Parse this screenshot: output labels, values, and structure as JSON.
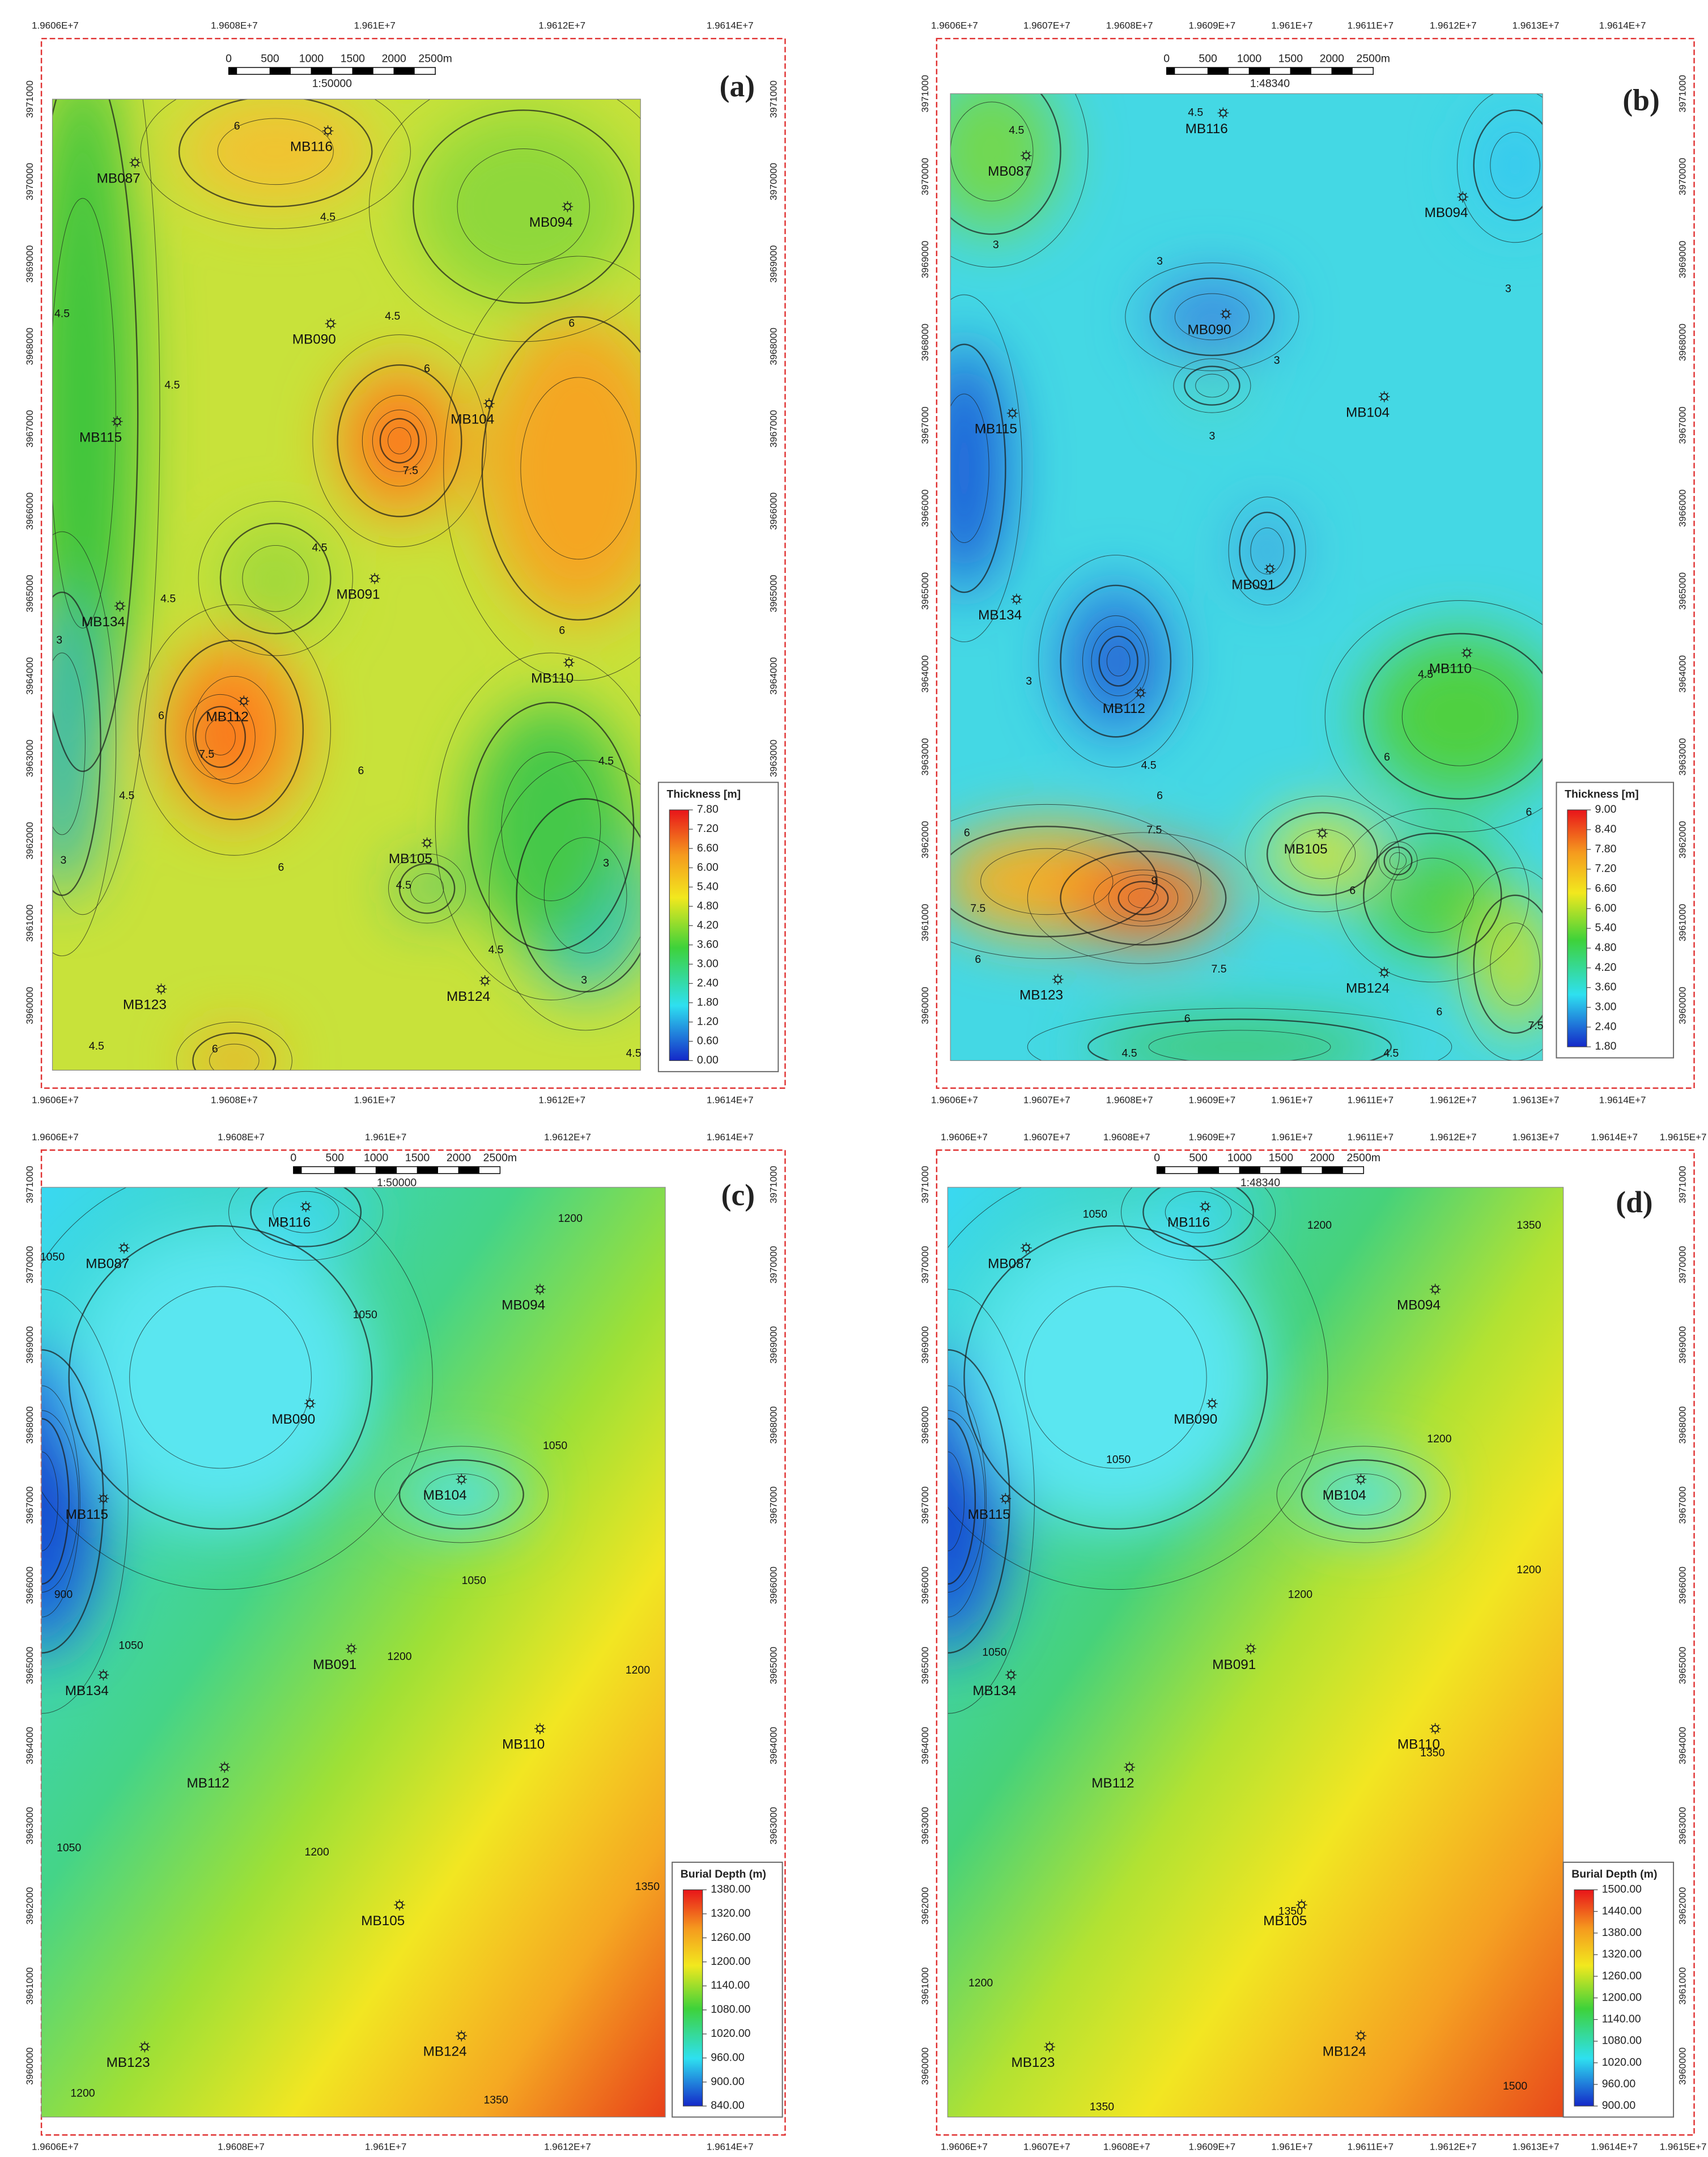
{
  "panels": [
    {
      "label": "(a)",
      "scale_bar": [
        "0",
        "500",
        "1000",
        "1500",
        "2000",
        "2500m"
      ],
      "scale": "1:50000",
      "x_ticks": [
        "1.9606E+7",
        "1.9608E+7",
        "1.961E+7",
        "1.9612E+7",
        "1.9614E+7"
      ],
      "y_ticks": [
        "3971000",
        "3970000",
        "3969000",
        "3968000",
        "3967000",
        "3966000",
        "3965000",
        "3964000",
        "3963000",
        "3962000",
        "3961000",
        "3960000"
      ],
      "wells": [
        "MB087",
        "MB116",
        "MB094",
        "MB090",
        "MB104",
        "MB115",
        "MB091",
        "MB134",
        "MB110",
        "MB112",
        "MB105",
        "MB123",
        "MB124"
      ],
      "contour_labels": [
        "6",
        "4.5",
        "4.5",
        "4.5",
        "6",
        "6",
        "4.5",
        "7.5",
        "4.5",
        "4.5",
        "3",
        "6",
        "6",
        "7.5",
        "4.5",
        "4.5",
        "6",
        "3",
        "6",
        "3",
        "4.5",
        "4.5",
        "3",
        "4.5",
        "6",
        "4.5"
      ],
      "legend": {
        "title": "Thickness [m]",
        "ticks": [
          "7.80",
          "7.20",
          "6.60",
          "6.00",
          "5.40",
          "4.80",
          "4.20",
          "3.60",
          "3.00",
          "2.40",
          "1.80",
          "1.20",
          "0.60",
          "0.00"
        ]
      }
    },
    {
      "label": "(b)",
      "scale_bar": [
        "0",
        "500",
        "1000",
        "1500",
        "2000",
        "2500m"
      ],
      "scale": "1:48340",
      "x_ticks": [
        "1.9606E+7",
        "1.9607E+7",
        "1.9608E+7",
        "1.9609E+7",
        "1.961E+7",
        "1.9611E+7",
        "1.9612E+7",
        "1.9613E+7",
        "1.9614E+7"
      ],
      "y_ticks": [
        "3971000",
        "3970000",
        "3969000",
        "3968000",
        "3967000",
        "3966000",
        "3965000",
        "3964000",
        "3963000",
        "3962000",
        "3961000",
        "3960000"
      ],
      "wells": [
        "MB116",
        "MB087",
        "MB094",
        "MB090",
        "MB104",
        "MB115",
        "MB091",
        "MB134",
        "MB110",
        "MB112",
        "MB105",
        "MB123",
        "MB124"
      ],
      "contour_labels": [
        "4.5",
        "4.5",
        "3",
        "3",
        "3",
        "3",
        "3",
        "3",
        "6",
        "4.5",
        "6",
        "6",
        "7.5",
        "7.5",
        "9",
        "6",
        "7.5",
        "6",
        "6",
        "6",
        "7.5",
        "4.5",
        "4.5",
        "6",
        "4.5"
      ],
      "legend": {
        "title": "Thickness [m]",
        "ticks": [
          "9.00",
          "8.40",
          "7.80",
          "7.20",
          "6.60",
          "6.00",
          "5.40",
          "4.80",
          "4.20",
          "3.60",
          "3.00",
          "2.40",
          "1.80"
        ]
      }
    },
    {
      "label": "(c)",
      "scale_bar": [
        "0",
        "500",
        "1000",
        "1500",
        "2000",
        "2500m"
      ],
      "scale": "1:50000",
      "x_ticks": [
        "1.9606E+7",
        "1.9608E+7",
        "1.961E+7",
        "1.9612E+7",
        "1.9614E+7"
      ],
      "y_ticks": [
        "3971000",
        "3970000",
        "3969000",
        "3968000",
        "3967000",
        "3966000",
        "3965000",
        "3964000",
        "3963000",
        "3962000",
        "3961000",
        "3960000"
      ],
      "wells": [
        "MB116",
        "MB087",
        "MB094",
        "MB090",
        "MB104",
        "MB115",
        "MB091",
        "MB134",
        "MB110",
        "MB112",
        "MB105",
        "MB123",
        "MB124"
      ],
      "contour_labels": [
        "1050",
        "1200",
        "1050",
        "1050",
        "900",
        "1050",
        "1050",
        "1200",
        "1200",
        "1050",
        "1200",
        "1350",
        "1200",
        "1350"
      ],
      "legend": {
        "title": "Burial Depth (m)",
        "ticks": [
          "1380.00",
          "1320.00",
          "1260.00",
          "1200.00",
          "1140.00",
          "1080.00",
          "1020.00",
          "960.00",
          "900.00",
          "840.00"
        ]
      }
    },
    {
      "label": "(d)",
      "scale_bar": [
        "0",
        "500",
        "1000",
        "1500",
        "2000",
        "2500m"
      ],
      "scale": "1:48340",
      "x_ticks": [
        "1.9606E+7",
        "1.9607E+7",
        "1.9608E+7",
        "1.9609E+7",
        "1.961E+7",
        "1.9611E+7",
        "1.9612E+7",
        "1.9613E+7",
        "1.9614E+7",
        "1.9615E+7"
      ],
      "y_ticks": [
        "3971000",
        "3970000",
        "3969000",
        "3968000",
        "3967000",
        "3966000",
        "3965000",
        "3964000",
        "3963000",
        "3962000",
        "3961000",
        "3960000"
      ],
      "wells": [
        "MB116",
        "MB087",
        "MB094",
        "MB090",
        "MB104",
        "MB115",
        "MB091",
        "MB134",
        "MB110",
        "MB112",
        "MB105",
        "MB123",
        "MB124"
      ],
      "contour_labels": [
        "1050",
        "1200",
        "1350",
        "1050",
        "1200",
        "1200",
        "1200",
        "1050",
        "1350",
        "1200",
        "1350",
        "1350",
        "1500"
      ],
      "legend": {
        "title": "Burial Depth (m)",
        "ticks": [
          "1500.00",
          "1440.00",
          "1380.00",
          "1320.00",
          "1260.00",
          "1200.00",
          "1140.00",
          "1080.00",
          "1020.00",
          "960.00",
          "900.00"
        ]
      }
    }
  ]
}
